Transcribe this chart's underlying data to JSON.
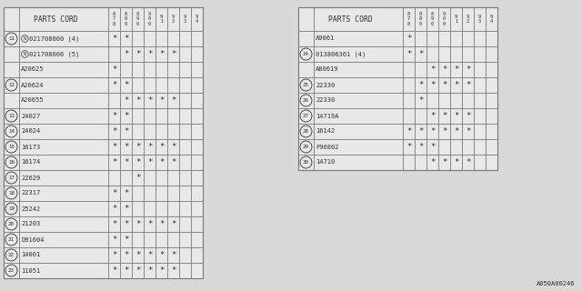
{
  "bg_color": "#d8d8d8",
  "table_bg": "#e8e8e8",
  "line_color": "#787878",
  "font_color": "#303030",
  "left_table": {
    "title": "PARTS CORD",
    "col_headers": [
      "8\n7\n8",
      "8\n8\n0",
      "8\n9\n0",
      "9\n0\n0",
      "9\n1",
      "9\n2",
      "9\n3",
      "9\n4"
    ],
    "rows": [
      {
        "num": "11",
        "part": "021708000 (4)",
        "marks": [
          1,
          1,
          0,
          0,
          0,
          0,
          0,
          0
        ],
        "n_prefix": true,
        "span_num": true
      },
      {
        "num": "",
        "part": "021708006 (5)",
        "marks": [
          0,
          1,
          1,
          1,
          1,
          1,
          0,
          0
        ],
        "n_prefix": true,
        "span_num": false
      },
      {
        "num": "",
        "part": "A20625",
        "marks": [
          1,
          0,
          0,
          0,
          0,
          0,
          0,
          0
        ],
        "n_prefix": false,
        "span_num": false
      },
      {
        "num": "12",
        "part": "A20624",
        "marks": [
          1,
          1,
          0,
          0,
          0,
          0,
          0,
          0
        ],
        "n_prefix": false,
        "span_num": false
      },
      {
        "num": "",
        "part": "A20655",
        "marks": [
          0,
          1,
          1,
          1,
          1,
          1,
          0,
          0
        ],
        "n_prefix": false,
        "span_num": false
      },
      {
        "num": "13",
        "part": "24027",
        "marks": [
          1,
          1,
          0,
          0,
          0,
          0,
          0,
          0
        ],
        "n_prefix": false,
        "span_num": false
      },
      {
        "num": "14",
        "part": "24024",
        "marks": [
          1,
          1,
          0,
          0,
          0,
          0,
          0,
          0
        ],
        "n_prefix": false,
        "span_num": false
      },
      {
        "num": "15",
        "part": "16173",
        "marks": [
          1,
          1,
          1,
          1,
          1,
          1,
          0,
          0
        ],
        "n_prefix": false,
        "span_num": false
      },
      {
        "num": "16",
        "part": "16174",
        "marks": [
          1,
          1,
          1,
          1,
          1,
          1,
          0,
          0
        ],
        "n_prefix": false,
        "span_num": false
      },
      {
        "num": "17",
        "part": "22629",
        "marks": [
          0,
          0,
          1,
          0,
          0,
          0,
          0,
          0
        ],
        "n_prefix": false,
        "span_num": false
      },
      {
        "num": "18",
        "part": "22317",
        "marks": [
          1,
          1,
          0,
          0,
          0,
          0,
          0,
          0
        ],
        "n_prefix": false,
        "span_num": false
      },
      {
        "num": "19",
        "part": "25242",
        "marks": [
          1,
          1,
          0,
          0,
          0,
          0,
          0,
          0
        ],
        "n_prefix": false,
        "span_num": false
      },
      {
        "num": "20",
        "part": "21203",
        "marks": [
          1,
          1,
          1,
          1,
          1,
          1,
          0,
          0
        ],
        "n_prefix": false,
        "span_num": false
      },
      {
        "num": "21",
        "part": "D91604",
        "marks": [
          1,
          1,
          0,
          0,
          0,
          0,
          0,
          0
        ],
        "n_prefix": false,
        "span_num": false
      },
      {
        "num": "22",
        "part": "14001",
        "marks": [
          1,
          1,
          1,
          1,
          1,
          1,
          0,
          0
        ],
        "n_prefix": false,
        "span_num": false
      },
      {
        "num": "23",
        "part": "11051",
        "marks": [
          1,
          1,
          1,
          1,
          1,
          1,
          0,
          0
        ],
        "n_prefix": false,
        "span_num": false
      }
    ]
  },
  "right_table": {
    "title": "PARTS CORD",
    "col_headers": [
      "8\n7\n8",
      "8\n8\n0",
      "8\n9\n0",
      "9\n0\n0",
      "9\n1",
      "9\n2",
      "9\n3",
      "9\n4"
    ],
    "rows": [
      {
        "num": "",
        "part": "A9061",
        "marks": [
          1,
          0,
          0,
          0,
          0,
          0,
          0,
          0
        ],
        "n_prefix": false
      },
      {
        "num": "24",
        "part": "013806361 (4)",
        "marks": [
          1,
          1,
          0,
          0,
          0,
          0,
          0,
          0
        ],
        "n_prefix": false
      },
      {
        "num": "",
        "part": "A80619",
        "marks": [
          0,
          0,
          1,
          1,
          1,
          1,
          0,
          0
        ],
        "n_prefix": false
      },
      {
        "num": "25",
        "part": "22330",
        "marks": [
          0,
          1,
          1,
          1,
          1,
          1,
          0,
          0
        ],
        "n_prefix": false
      },
      {
        "num": "26",
        "part": "22330",
        "marks": [
          0,
          1,
          0,
          0,
          0,
          0,
          0,
          0
        ],
        "n_prefix": false
      },
      {
        "num": "27",
        "part": "14719A",
        "marks": [
          0,
          0,
          1,
          1,
          1,
          1,
          0,
          0
        ],
        "n_prefix": false
      },
      {
        "num": "28",
        "part": "16142",
        "marks": [
          1,
          1,
          1,
          1,
          1,
          1,
          0,
          0
        ],
        "n_prefix": false
      },
      {
        "num": "29",
        "part": "F90802",
        "marks": [
          1,
          1,
          1,
          0,
          0,
          0,
          0,
          0
        ],
        "n_prefix": false
      },
      {
        "num": "30",
        "part": "14710",
        "marks": [
          0,
          0,
          1,
          1,
          1,
          1,
          0,
          0
        ],
        "n_prefix": false
      }
    ]
  },
  "footer": "A050A00246"
}
